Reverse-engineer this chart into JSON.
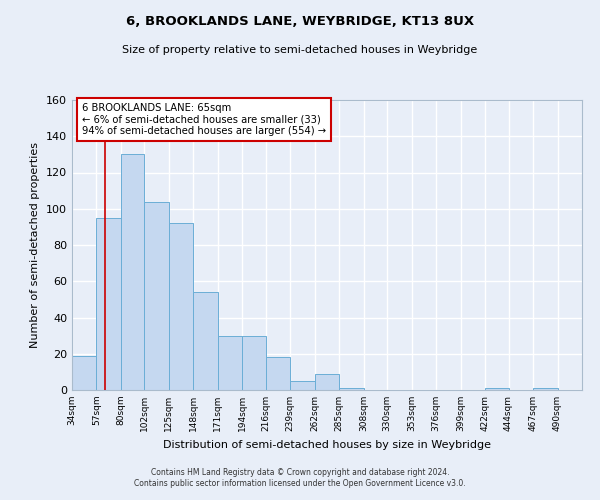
{
  "title": "6, BROOKLANDS LANE, WEYBRIDGE, KT13 8UX",
  "subtitle": "Size of property relative to semi-detached houses in Weybridge",
  "xlabel": "Distribution of semi-detached houses by size in Weybridge",
  "ylabel": "Number of semi-detached properties",
  "bin_labels": [
    "34sqm",
    "57sqm",
    "80sqm",
    "102sqm",
    "125sqm",
    "148sqm",
    "171sqm",
    "194sqm",
    "216sqm",
    "239sqm",
    "262sqm",
    "285sqm",
    "308sqm",
    "330sqm",
    "353sqm",
    "376sqm",
    "399sqm",
    "422sqm",
    "444sqm",
    "467sqm",
    "490sqm"
  ],
  "bar_values": [
    19,
    95,
    130,
    104,
    92,
    54,
    30,
    30,
    18,
    5,
    9,
    1,
    0,
    0,
    0,
    0,
    0,
    1,
    0,
    1,
    0
  ],
  "bar_color": "#c5d8f0",
  "bar_edge_color": "#6baed6",
  "ylim": [
    0,
    160
  ],
  "yticks": [
    0,
    20,
    40,
    60,
    80,
    100,
    120,
    140,
    160
  ],
  "property_line_x": 65,
  "property_line_label": "6 BROOKLANDS LANE: 65sqm",
  "annotation_line1": "← 6% of semi-detached houses are smaller (33)",
  "annotation_line2": "94% of semi-detached houses are larger (554) →",
  "annotation_box_color": "#cc0000",
  "footer_line1": "Contains HM Land Registry data © Crown copyright and database right 2024.",
  "footer_line2": "Contains public sector information licensed under the Open Government Licence v3.0.",
  "background_color": "#e8eef8",
  "grid_color": "#ffffff",
  "bin_edges": [
    34,
    57,
    80,
    102,
    125,
    148,
    171,
    194,
    216,
    239,
    262,
    285,
    308,
    330,
    353,
    376,
    399,
    422,
    444,
    467,
    490
  ]
}
